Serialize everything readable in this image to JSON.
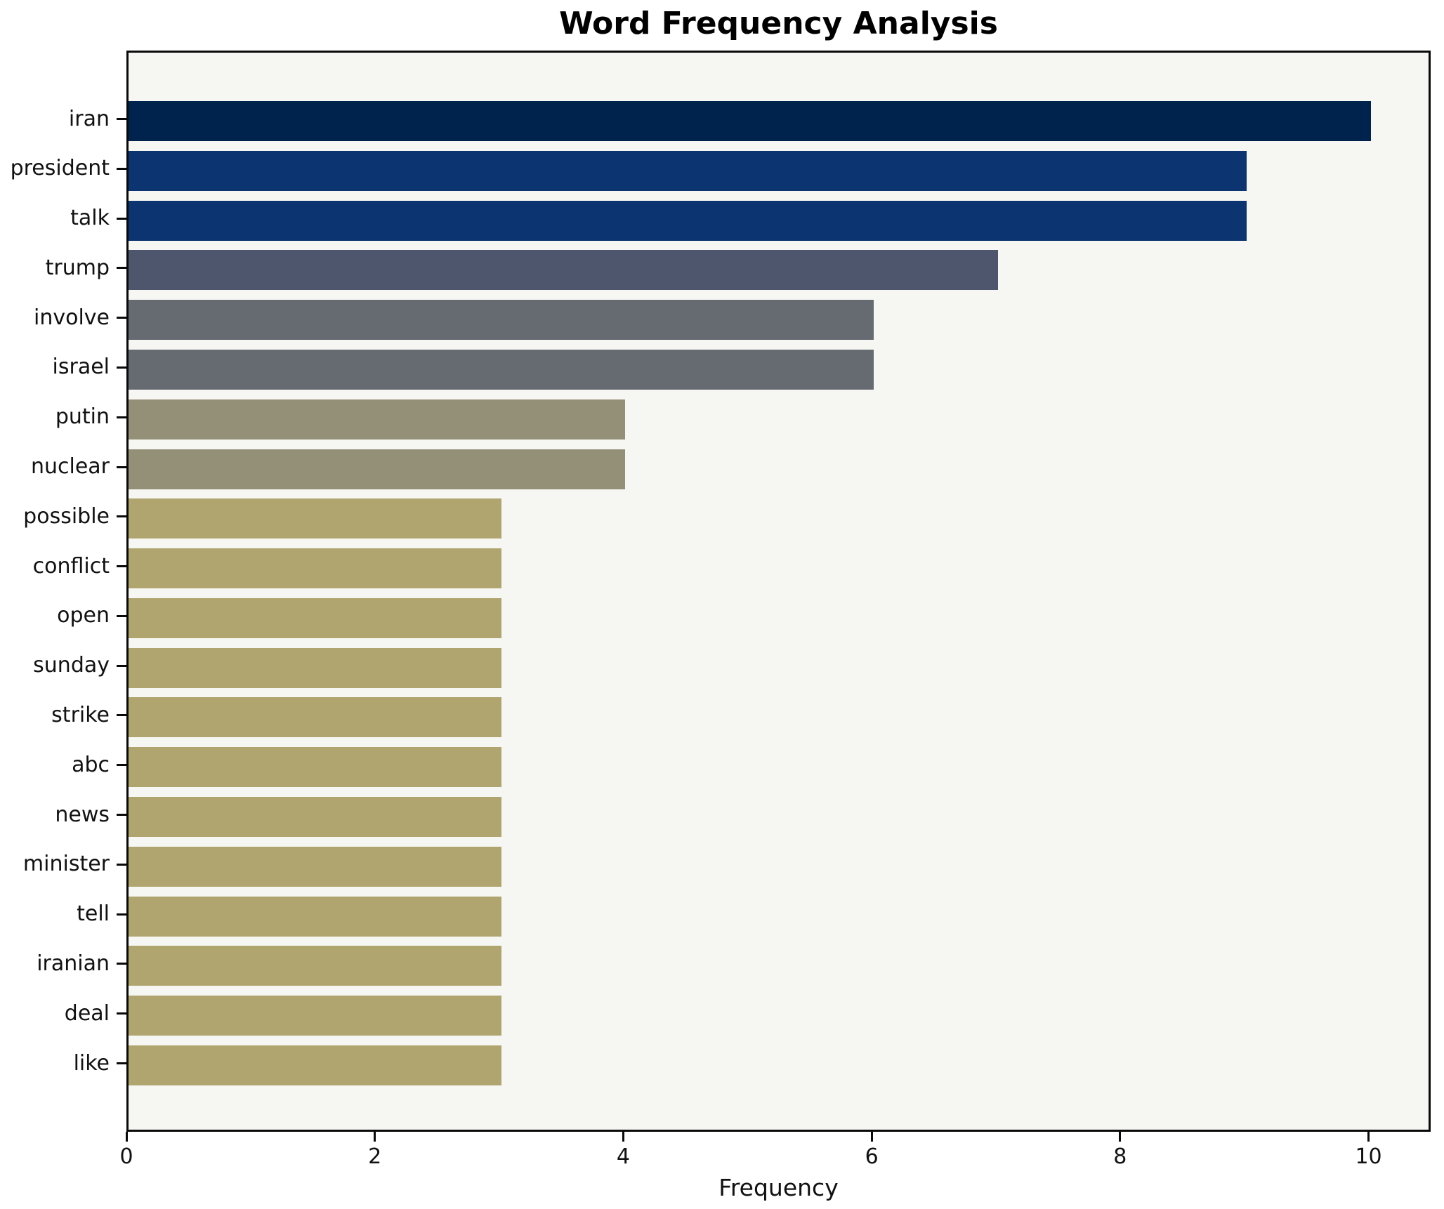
{
  "chart_data": {
    "type": "bar",
    "orientation": "horizontal",
    "title": "Word Frequency Analysis",
    "xlabel": "Frequency",
    "ylabel": "",
    "categories": [
      "iran",
      "president",
      "talk",
      "trump",
      "involve",
      "israel",
      "putin",
      "nuclear",
      "possible",
      "conflict",
      "open",
      "sunday",
      "strike",
      "abc",
      "news",
      "minister",
      "tell",
      "iranian",
      "deal",
      "like"
    ],
    "values": [
      10,
      9,
      9,
      7,
      6,
      6,
      4,
      4,
      3,
      3,
      3,
      3,
      3,
      3,
      3,
      3,
      3,
      3,
      3,
      3
    ],
    "bar_colors": [
      "#00234e",
      "#0b3470",
      "#0b3470",
      "#4d566c",
      "#666a71",
      "#666a71",
      "#948f77",
      "#948f77",
      "#b0a56e",
      "#b0a56e",
      "#b0a56e",
      "#b0a56e",
      "#b0a56e",
      "#b0a56e",
      "#b0a56e",
      "#b0a56e",
      "#b0a56e",
      "#b0a56e",
      "#b0a56e",
      "#b0a56e"
    ],
    "xticks": [
      0,
      2,
      4,
      6,
      8,
      10
    ],
    "xlim": [
      0,
      10.5
    ],
    "grid": false,
    "legend": null,
    "plot_background": "#f6f7f3",
    "figure_background": "#ffffff",
    "spine_color": "#0a0a0a"
  }
}
